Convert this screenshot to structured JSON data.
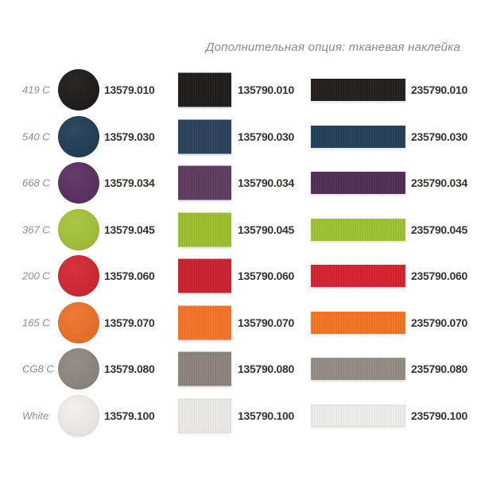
{
  "header": {
    "title": "Дополнительная опция: тканевая наклейка"
  },
  "accent_colors": {
    "code_text": "#37322e",
    "label_text": "#8e8c8a",
    "header_text": "#8a8a8a"
  },
  "rows": [
    {
      "pantone": "419 C",
      "circle_code": "13579.010",
      "patch_code": "135790.010",
      "ribbon_code": "235790.010",
      "circle_color": "#1b1817",
      "patch_color": "#1e1b19",
      "ribbon_color": "#211d1b"
    },
    {
      "pantone": "540 C",
      "circle_code": "13579.030",
      "patch_code": "135790.030",
      "ribbon_code": "235790.030",
      "circle_color": "#1f3b55",
      "patch_color": "#28415b",
      "ribbon_color": "#223e58"
    },
    {
      "pantone": "668 C",
      "circle_code": "13579.034",
      "patch_code": "135790.034",
      "ribbon_code": "235790.034",
      "circle_color": "#5a2d60",
      "patch_color": "#5d3a60",
      "ribbon_color": "#4f2c55"
    },
    {
      "pantone": "367 C",
      "circle_code": "13579.045",
      "patch_code": "135790.045",
      "ribbon_code": "235790.045",
      "circle_color": "#a5c137",
      "patch_color": "#9dc02c",
      "ribbon_color": "#9dc32f"
    },
    {
      "pantone": "200 C",
      "circle_code": "13579.060",
      "patch_code": "135790.060",
      "ribbon_code": "235790.060",
      "circle_color": "#d2252f",
      "patch_color": "#cb202d",
      "ribbon_color": "#da202d"
    },
    {
      "pantone": "165 C",
      "circle_code": "13579.070",
      "patch_code": "135790.070",
      "ribbon_code": "235790.070",
      "circle_color": "#ec7026",
      "patch_color": "#f37424",
      "ribbon_color": "#f47420"
    },
    {
      "pantone": "CG8 C",
      "circle_code": "13579.080",
      "patch_code": "135790.080",
      "ribbon_code": "235790.080",
      "circle_color": "#8c8680",
      "patch_color": "#8a837c",
      "ribbon_color": "#938c84"
    },
    {
      "pantone": "White",
      "circle_code": "13579.100",
      "patch_code": "135790.100",
      "ribbon_code": "235790.100",
      "circle_color": "#f1efec",
      "patch_color": "#edebe8",
      "ribbon_color": "#f1efec"
    }
  ]
}
